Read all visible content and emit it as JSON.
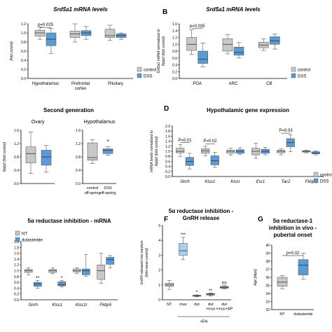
{
  "colors": {
    "control": "#c8c8c8",
    "dss": "#5b9bd5",
    "nt": "#c8c8c8",
    "dutasteride": "#5b9bd5",
    "mus_light": "#a9cfee",
    "axis": "#000000",
    "whisker": "#555555"
  },
  "chart_data": [
    {
      "letter": "",
      "type": "box",
      "title": "Srd5a1 mRNA levels",
      "title_style": "italic",
      "ylabel": "(fold control)",
      "ylim": [
        0.0,
        1.2
      ],
      "yticks": [
        "0.0",
        "0.2",
        "0.4",
        "0.6",
        "0.8",
        "1.0",
        "1.2"
      ],
      "categories": [
        "Hypothalamus",
        "Prefrontal cortex",
        "Pituitary"
      ],
      "category_lines": [
        [
          "Hypothalamus"
        ],
        [
          "Prefrontal",
          "cortex"
        ],
        [
          "Pituitary"
        ]
      ],
      "legend": {
        "placement": "right",
        "entries": [
          {
            "label": "control",
            "key": "control"
          },
          {
            "label": "DSS",
            "key": "dss"
          }
        ]
      },
      "groups": [
        {
          "boxes": [
            {
              "key": "control",
              "min": 0.86,
              "q1": 0.93,
              "median": 1.0,
              "q3": 1.06,
              "max": 1.13
            },
            {
              "key": "dss",
              "min": 0.55,
              "q1": 0.72,
              "median": 0.86,
              "q3": 1.0,
              "max": 1.1
            }
          ]
        },
        {
          "boxes": [
            {
              "key": "control",
              "min": 0.8,
              "q1": 0.9,
              "median": 0.98,
              "q3": 1.04,
              "max": 1.2
            },
            {
              "key": "dss",
              "min": 0.86,
              "q1": 0.94,
              "median": 1.0,
              "q3": 1.05,
              "max": 1.14
            }
          ]
        },
        {
          "boxes": [
            {
              "key": "control",
              "min": 0.84,
              "q1": 0.9,
              "median": 0.94,
              "q3": 1.08,
              "max": 1.17
            },
            {
              "key": "dss",
              "min": 0.86,
              "q1": 0.9,
              "median": 0.94,
              "q3": 0.98,
              "max": 1.0
            }
          ]
        }
      ],
      "annotations": [
        {
          "text": "p=0.025",
          "group": 0,
          "y": 1.12,
          "bracket": true
        }
      ]
    },
    {
      "letter": "B",
      "type": "box",
      "title": "Srd5a1 mRNA levels",
      "title_style": "italic",
      "ylabel": "Srd5a1 mRNA normalized to",
      "ylabel2": "Rplp0 (fold control)",
      "ylim": [
        0.0,
        1.6
      ],
      "yticks": [
        "0.0",
        "0.2",
        "0.4",
        "0.6",
        "0.8",
        "1.0",
        "1.2",
        "1.4",
        "1.6"
      ],
      "categories": [
        "POA",
        "ARC",
        "CB"
      ],
      "category_lines": [
        [
          "POA"
        ],
        [
          "ARC"
        ],
        [
          "CB"
        ]
      ],
      "legend": {
        "placement": "right",
        "entries": [
          {
            "label": "control",
            "key": "control"
          },
          {
            "label": "DSS",
            "key": "dss"
          }
        ]
      },
      "groups": [
        {
          "boxes": [
            {
              "key": "control",
              "min": 0.7,
              "q1": 0.82,
              "median": 1.0,
              "q3": 1.2,
              "max": 1.42
            },
            {
              "key": "dss",
              "min": 0.34,
              "q1": 0.44,
              "median": 0.56,
              "q3": 0.8,
              "max": 1.04
            }
          ]
        },
        {
          "boxes": [
            {
              "key": "control",
              "min": 0.72,
              "q1": 0.8,
              "median": 1.0,
              "q3": 1.16,
              "max": 1.28
            },
            {
              "key": "dss",
              "min": 0.6,
              "q1": 0.68,
              "median": 0.76,
              "q3": 0.92,
              "max": 1.05
            }
          ]
        },
        {
          "boxes": [
            {
              "key": "control",
              "min": 0.82,
              "q1": 0.9,
              "median": 0.98,
              "q3": 1.06,
              "max": 1.16
            },
            {
              "key": "dss",
              "min": 0.86,
              "q1": 1.0,
              "median": 1.1,
              "q3": 1.22,
              "max": 1.3
            }
          ]
        }
      ],
      "annotations": [
        {
          "text": "p=0.035",
          "group": 0,
          "y": 1.46,
          "bracket": true
        }
      ]
    },
    {
      "letter": "",
      "type": "box",
      "title": "Second generation",
      "title_style": "bold",
      "subtitle_left": "Ovary",
      "subtitle_right": "Hypothalamus",
      "ylabel": "Rplp0 (fold control)",
      "ylim": [
        0.0,
        1.6
      ],
      "yticks_left": [
        "0.0",
        "0.4",
        "0.8",
        "1.2",
        "1.6"
      ],
      "yticks_right": [
        "0.0",
        "0.4",
        "0.8",
        "1.2",
        "1.6"
      ],
      "xtick_labels": [
        [
          "control",
          "off-spring"
        ],
        [
          "DSS",
          "off-spring"
        ]
      ],
      "groups_left": [
        {
          "key": "control",
          "min": 0.3,
          "q1": 0.62,
          "median": 0.9,
          "q3": 1.1,
          "max": 1.55
        },
        {
          "key": "dss",
          "min": 0.34,
          "q1": 0.55,
          "median": 0.8,
          "q3": 1.0,
          "max": 1.14
        }
      ],
      "groups_right": [
        {
          "key": "control",
          "min": 0.6,
          "q1": 0.7,
          "median": 0.78,
          "q3": 1.22,
          "max": 1.32
        },
        {
          "key": "dss",
          "min": 0.85,
          "q1": 0.9,
          "median": 1.0,
          "q3": 1.04,
          "max": 1.1
        }
      ],
      "annotations": [
        {
          "text": "*",
          "side": "right",
          "box": 1,
          "y": 1.2
        }
      ]
    },
    {
      "letter": "D",
      "type": "box",
      "title": "Hypothalamic gene expression",
      "title_style": "bold",
      "ylabel": "mRNA levels normalized to",
      "ylabel2": "Rplp0 (fold control)",
      "ylim": [
        0.0,
        2.0
      ],
      "yticks": [
        "0.0",
        "0.2",
        "0.4",
        "0.6",
        "0.8",
        "1.0",
        "1.2",
        "1.4",
        "1.6",
        "1.8",
        "2.0"
      ],
      "categories": [
        "Gnrh",
        "Kiss1",
        "Kissr",
        "Esr1",
        "Tac2",
        "Fkbp5"
      ],
      "category_lines": [
        [
          "Gnrh"
        ],
        [
          "Kiss1"
        ],
        [
          "Kissr"
        ],
        [
          "Esr1"
        ],
        [
          "Tac2"
        ],
        [
          "Fkbp5"
        ]
      ],
      "category_style": "italic",
      "legend": {
        "placement": "right",
        "entries": [
          {
            "label": "control",
            "key": "control"
          },
          {
            "label": "DSS",
            "key": "dss"
          }
        ]
      },
      "groups": [
        {
          "boxes": [
            {
              "key": "control",
              "min": 0.8,
              "q1": 0.94,
              "median": 1.0,
              "q3": 1.12,
              "max": 1.26
            },
            {
              "key": "dss",
              "min": 0.3,
              "q1": 0.44,
              "median": 0.6,
              "q3": 0.76,
              "max": 0.92
            }
          ]
        },
        {
          "boxes": [
            {
              "key": "control",
              "min": 0.82,
              "q1": 0.92,
              "median": 1.02,
              "q3": 1.1,
              "max": 1.2
            },
            {
              "key": "dss",
              "min": 0.36,
              "q1": 0.46,
              "median": 0.62,
              "q3": 0.82,
              "max": 0.96
            }
          ]
        },
        {
          "boxes": [
            {
              "key": "control",
              "min": 0.84,
              "q1": 0.92,
              "median": 1.0,
              "q3": 1.04,
              "max": 1.12
            },
            {
              "key": "dss",
              "min": 0.88,
              "q1": 0.92,
              "median": 1.0,
              "q3": 1.06,
              "max": 1.14
            }
          ]
        },
        {
          "boxes": [
            {
              "key": "control",
              "min": 0.72,
              "q1": 0.86,
              "median": 1.0,
              "q3": 1.12,
              "max": 1.32
            },
            {
              "key": "dss",
              "min": 0.86,
              "q1": 0.92,
              "median": 1.0,
              "q3": 1.08,
              "max": 1.16
            }
          ]
        },
        {
          "boxes": [
            {
              "key": "control",
              "min": 0.86,
              "q1": 0.94,
              "median": 1.0,
              "q3": 1.04,
              "max": 1.1
            },
            {
              "key": "dss",
              "min": 0.98,
              "q1": 1.18,
              "median": 1.34,
              "q3": 1.5,
              "max": 1.66
            }
          ]
        },
        {
          "boxes": [
            {
              "key": "control",
              "min": 0.94,
              "q1": 0.97,
              "median": 1.0,
              "q3": 1.02,
              "max": 1.05
            },
            {
              "key": "dss",
              "min": 0.86,
              "q1": 0.9,
              "median": 0.94,
              "q3": 0.98,
              "max": 1.02
            }
          ]
        }
      ],
      "annotations": [
        {
          "text": "P=0.01",
          "group": 0,
          "y": 1.34,
          "bracket": true
        },
        {
          "text": "P=0.02",
          "group": 1,
          "y": 1.3,
          "bracket": true
        },
        {
          "text": "P=0.03",
          "group": 4,
          "y": 1.72,
          "bracket": true
        }
      ]
    },
    {
      "letter": "",
      "type": "box",
      "title": "5α reductase inhibition - mRNA",
      "title_style": "bold",
      "ylabel": "",
      "ylim": [
        0.0,
        2.0
      ],
      "yticks": [
        "0.0",
        "0.2",
        "0.4",
        "0.6",
        "0.8",
        "1.0",
        "1.2",
        "1.4",
        "1.6",
        "1.8",
        "2.0"
      ],
      "categories": [
        "Gnrh",
        "Kiss1",
        "Kiss1r",
        "Fkbp5"
      ],
      "category_lines": [
        [
          "Gnrh"
        ],
        [
          "Kiss1"
        ],
        [
          "Kiss1r"
        ],
        [
          "Fkbp5"
        ]
      ],
      "category_style": "italic",
      "legend": {
        "placement": "top-left",
        "entries": [
          {
            "label": "NT",
            "key": "nt"
          },
          {
            "label": "dutasteride",
            "key": "dutasteride"
          }
        ]
      },
      "groups": [
        {
          "boxes": [
            {
              "key": "nt",
              "min": 0.86,
              "q1": 0.94,
              "median": 1.0,
              "q3": 1.04,
              "max": 1.1
            },
            {
              "key": "dutasteride",
              "min": 0.4,
              "q1": 0.46,
              "median": 0.54,
              "q3": 0.6,
              "max": 0.66
            }
          ]
        },
        {
          "boxes": [
            {
              "key": "nt",
              "min": 0.9,
              "q1": 0.94,
              "median": 1.0,
              "q3": 1.04,
              "max": 1.1
            },
            {
              "key": "dutasteride",
              "min": 0.44,
              "q1": 0.48,
              "median": 0.52,
              "q3": 0.62,
              "max": 0.66
            }
          ]
        },
        {
          "boxes": [
            {
              "key": "nt",
              "min": 0.9,
              "q1": 0.96,
              "median": 1.0,
              "q3": 1.06,
              "max": 1.1
            },
            {
              "key": "dutasteride",
              "min": 0.8,
              "q1": 0.86,
              "median": 1.0,
              "q3": 1.06,
              "max": 1.56
            }
          ]
        },
        {
          "boxes": [
            {
              "key": "nt",
              "min": 0.56,
              "q1": 0.7,
              "median": 1.0,
              "q3": 1.2,
              "max": 1.6
            },
            {
              "key": "dutasteride",
              "min": 1.1,
              "q1": 1.22,
              "median": 1.38,
              "q3": 1.46,
              "max": 1.52
            }
          ]
        }
      ],
      "annotations": [
        {
          "text": "**",
          "group": 0,
          "box": 1,
          "y": 0.7
        },
        {
          "text": "*",
          "group": 1,
          "box": 1,
          "y": 0.7
        }
      ]
    },
    {
      "letter": "F",
      "type": "box",
      "title": "5α reductase inhibition -",
      "title2": "GnRH release",
      "title_style": "bold",
      "ylabel": "GnRH released into medium",
      "ylabel2": "(fold mean control)",
      "ylim": [
        0,
        5
      ],
      "yticks": [
        "0",
        "1",
        "2",
        "3",
        "4",
        "5"
      ],
      "categories": [
        "NT",
        "mus",
        "dut",
        "dut +mus",
        "dut +mus+AP"
      ],
      "category_lines": [
        [
          "NT"
        ],
        [
          "mus"
        ],
        [
          "dut"
        ],
        [
          "dut",
          "+mus"
        ],
        [
          "dut",
          "+mus+AP"
        ]
      ],
      "footer": "+P4",
      "boxes": [
        {
          "key": "nt",
          "min": 0.7,
          "q1": 0.9,
          "median": 1.0,
          "q3": 1.12,
          "max": 1.3
        },
        {
          "key": "mus_light",
          "min": 2.7,
          "q1": 3.0,
          "median": 3.3,
          "q3": 3.8,
          "max": 4.2
        },
        {
          "key": "dutasteride",
          "min": 0.2,
          "q1": 0.24,
          "median": 0.27,
          "q3": 0.3,
          "max": 0.33
        },
        {
          "key": "dutasteride",
          "min": 0.25,
          "q1": 0.32,
          "median": 0.38,
          "q3": 0.42,
          "max": 0.46
        },
        {
          "key": "dutasteride",
          "min": 0.72,
          "q1": 0.78,
          "median": 0.84,
          "q3": 0.9,
          "max": 0.96
        }
      ],
      "annotations": [
        {
          "text": "***",
          "box": 1,
          "y": 4.3
        },
        {
          "text": "*",
          "box": 2,
          "y": 0.42
        },
        {
          "text": "**",
          "box": 3,
          "y": 0.52
        },
        {
          "text": "ns",
          "box": 4,
          "y": 1.06
        }
      ]
    },
    {
      "letter": "G",
      "type": "box",
      "title": "5α reductase-1",
      "title2": "inhibition in vivo -",
      "title3": "pubertal onset",
      "title_style": "bold",
      "ylabel": "Age [days]",
      "ylim": [
        32,
        40
      ],
      "yticks": [
        "32",
        "33",
        "34",
        "35",
        "36",
        "37",
        "38",
        "39",
        "40"
      ],
      "categories": [
        "NT",
        "dutasteride"
      ],
      "category_lines": [
        [
          "NT"
        ],
        [
          "dutasteride"
        ]
      ],
      "boxes": [
        {
          "key": "nt",
          "min": 34.6,
          "q1": 34.9,
          "median": 35.4,
          "q3": 36.0,
          "max": 36.2
        },
        {
          "key": "dutasteride",
          "min": 35.8,
          "q1": 36.3,
          "median": 37.5,
          "q3": 38.2,
          "max": 39.0
        }
      ],
      "annotations": [
        {
          "text": "p=0.02",
          "y": 38.7,
          "bracket": true
        }
      ]
    }
  ]
}
